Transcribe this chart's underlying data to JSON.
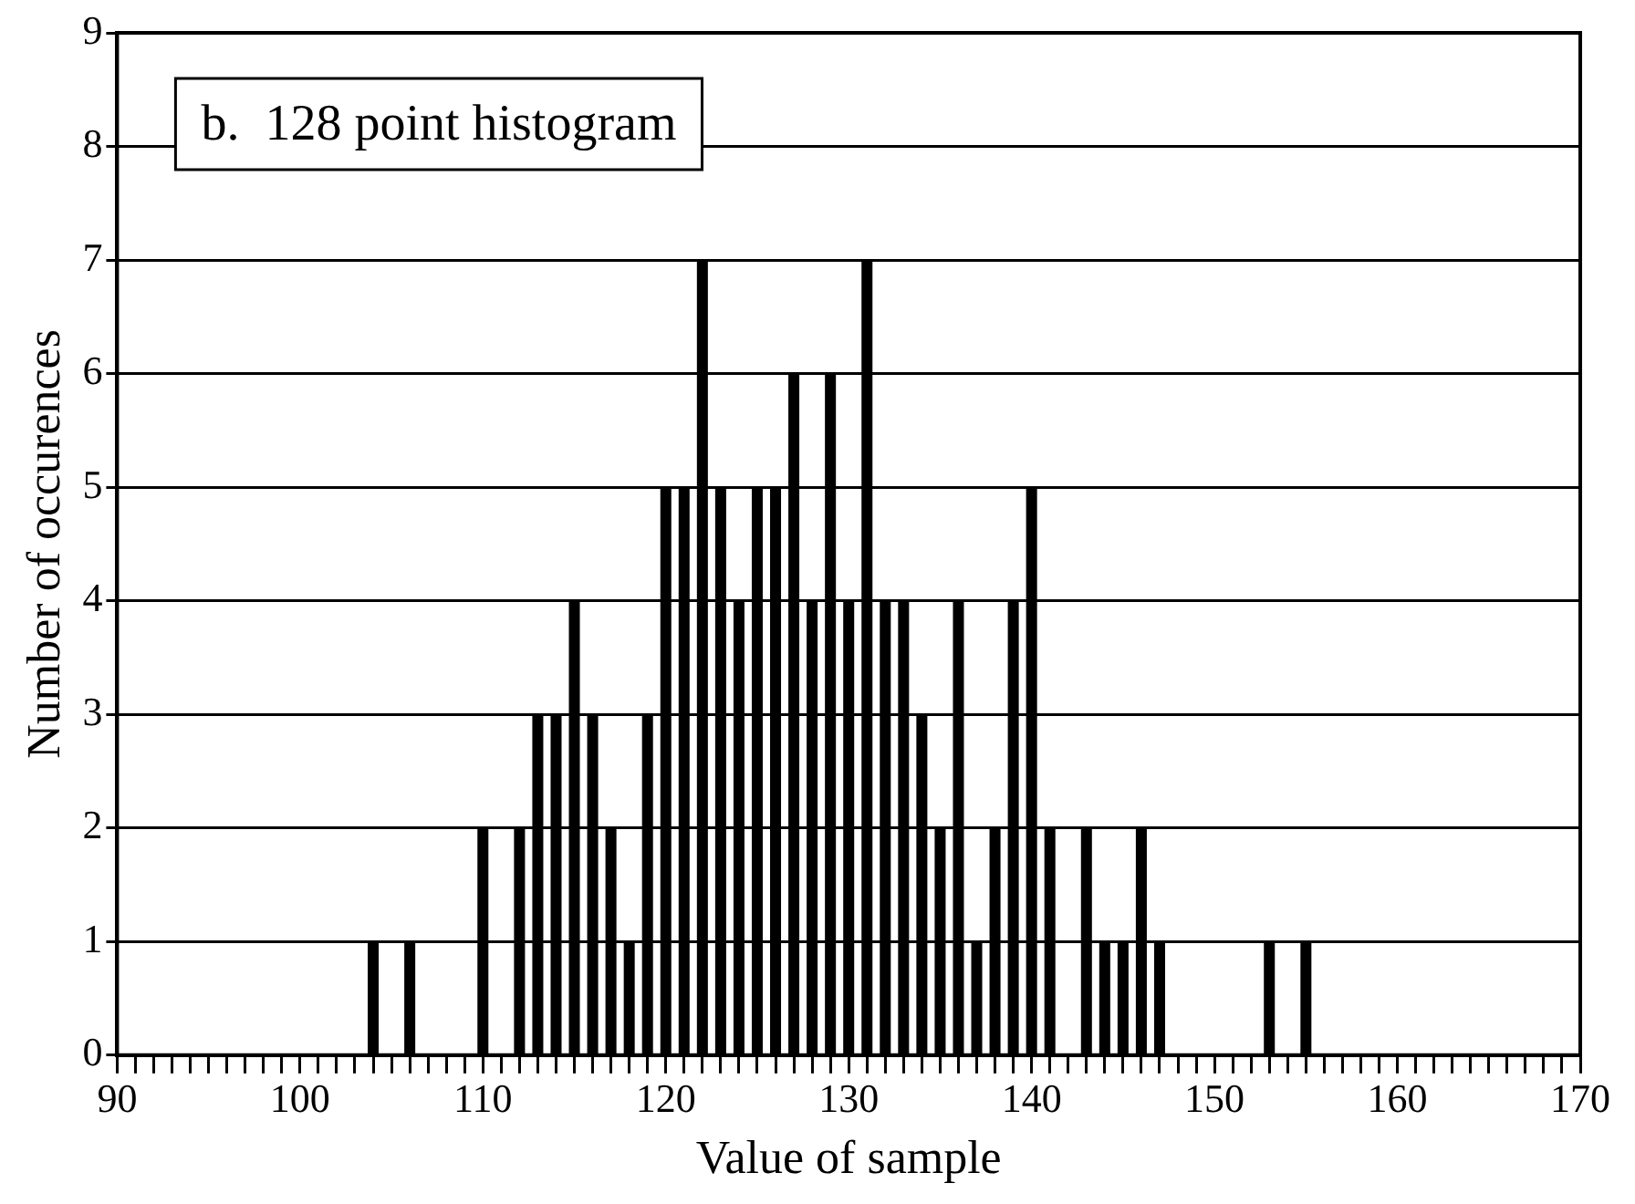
{
  "chart_data": {
    "type": "bar",
    "title": "b.  128 point histogram",
    "xlabel": "Value of sample",
    "ylabel": "Number of occurences",
    "x": [
      104,
      105,
      106,
      107,
      108,
      109,
      110,
      111,
      112,
      113,
      114,
      115,
      116,
      117,
      118,
      119,
      120,
      121,
      122,
      123,
      124,
      125,
      126,
      127,
      128,
      129,
      130,
      131,
      132,
      133,
      134,
      135,
      136,
      137,
      138,
      139,
      140,
      141,
      142,
      143,
      144,
      145,
      146,
      147,
      148,
      149,
      150,
      151,
      152,
      153,
      154,
      155
    ],
    "values": [
      1,
      0,
      1,
      0,
      0,
      0,
      2,
      0,
      2,
      3,
      3,
      4,
      3,
      2,
      1,
      3,
      5,
      5,
      7,
      5,
      4,
      5,
      5,
      6,
      4,
      6,
      4,
      7,
      4,
      4,
      3,
      2,
      4,
      1,
      2,
      4,
      5,
      2,
      0,
      2,
      1,
      1,
      2,
      1,
      0,
      0,
      0,
      0,
      0,
      1,
      0,
      1
    ],
    "color": "#000000",
    "xlim": [
      90,
      170
    ],
    "ylim": [
      0,
      9
    ],
    "xticks": [
      90,
      {
        "value": 91,
        "label": null
      },
      {
        "value": 92,
        "label": null
      },
      {
        "value": 93,
        "label": null
      },
      {
        "value": 94,
        "label": null
      },
      {
        "value": 95,
        "label": null
      },
      {
        "value": 96,
        "label": null
      },
      {
        "value": 97,
        "label": null
      },
      {
        "value": 98,
        "label": null
      },
      {
        "value": 99,
        "label": null
      },
      100,
      {
        "value": 101,
        "label": null
      },
      {
        "value": 102,
        "label": null
      },
      {
        "value": 103,
        "label": null
      },
      {
        "value": 104,
        "label": null
      },
      {
        "value": 105,
        "label": null
      },
      {
        "value": 106,
        "label": null
      },
      {
        "value": 107,
        "label": null
      },
      {
        "value": 108,
        "label": null
      },
      {
        "value": 109,
        "label": null
      },
      110,
      {
        "value": 111,
        "label": null
      },
      {
        "value": 112,
        "label": null
      },
      {
        "value": 113,
        "label": null
      },
      {
        "value": 114,
        "label": null
      },
      {
        "value": 115,
        "label": null
      },
      {
        "value": 116,
        "label": null
      },
      {
        "value": 117,
        "label": null
      },
      {
        "value": 118,
        "label": null
      },
      {
        "value": 119,
        "label": null
      },
      120,
      {
        "value": 121,
        "label": null
      },
      {
        "value": 122,
        "label": null
      },
      {
        "value": 123,
        "label": null
      },
      {
        "value": 124,
        "label": null
      },
      {
        "value": 125,
        "label": null
      },
      {
        "value": 126,
        "label": null
      },
      {
        "value": 127,
        "label": null
      },
      {
        "value": 128,
        "label": null
      },
      {
        "value": 129,
        "label": null
      },
      130,
      {
        "value": 131,
        "label": null
      },
      {
        "value": 132,
        "label": null
      },
      {
        "value": 133,
        "label": null
      },
      {
        "value": 134,
        "label": null
      },
      {
        "value": 135,
        "label": null
      },
      {
        "value": 136,
        "label": null
      },
      {
        "value": 137,
        "label": null
      },
      {
        "value": 138,
        "label": null
      },
      {
        "value": 139,
        "label": null
      },
      140,
      {
        "value": 141,
        "label": null
      },
      {
        "value": 142,
        "label": null
      },
      {
        "value": 143,
        "label": null
      },
      {
        "value": 144,
        "label": null
      },
      {
        "value": 145,
        "label": null
      },
      {
        "value": 146,
        "label": null
      },
      {
        "value": 147,
        "label": null
      },
      {
        "value": 148,
        "label": null
      },
      {
        "value": 149,
        "label": null
      },
      150,
      {
        "value": 151,
        "label": null
      },
      {
        "value": 152,
        "label": null
      },
      {
        "value": 153,
        "label": null
      },
      {
        "value": 154,
        "label": null
      },
      {
        "value": 155,
        "label": null
      },
      {
        "value": 156,
        "label": null
      },
      {
        "value": 157,
        "label": null
      },
      {
        "value": 158,
        "label": null
      },
      {
        "value": 159,
        "label": null
      },
      160,
      {
        "value": 161,
        "label": null
      },
      {
        "value": 162,
        "label": null
      },
      {
        "value": 163,
        "label": null
      },
      {
        "value": 164,
        "label": null
      },
      {
        "value": 165,
        "label": null
      },
      {
        "value": 166,
        "label": null
      },
      {
        "value": 167,
        "label": null
      },
      {
        "value": 168,
        "label": null
      },
      {
        "value": 169,
        "label": null
      },
      170
    ],
    "yticks": [
      0,
      1,
      2,
      3,
      4,
      5,
      6,
      7,
      8,
      9
    ],
    "grid": "y",
    "legend": false
  }
}
